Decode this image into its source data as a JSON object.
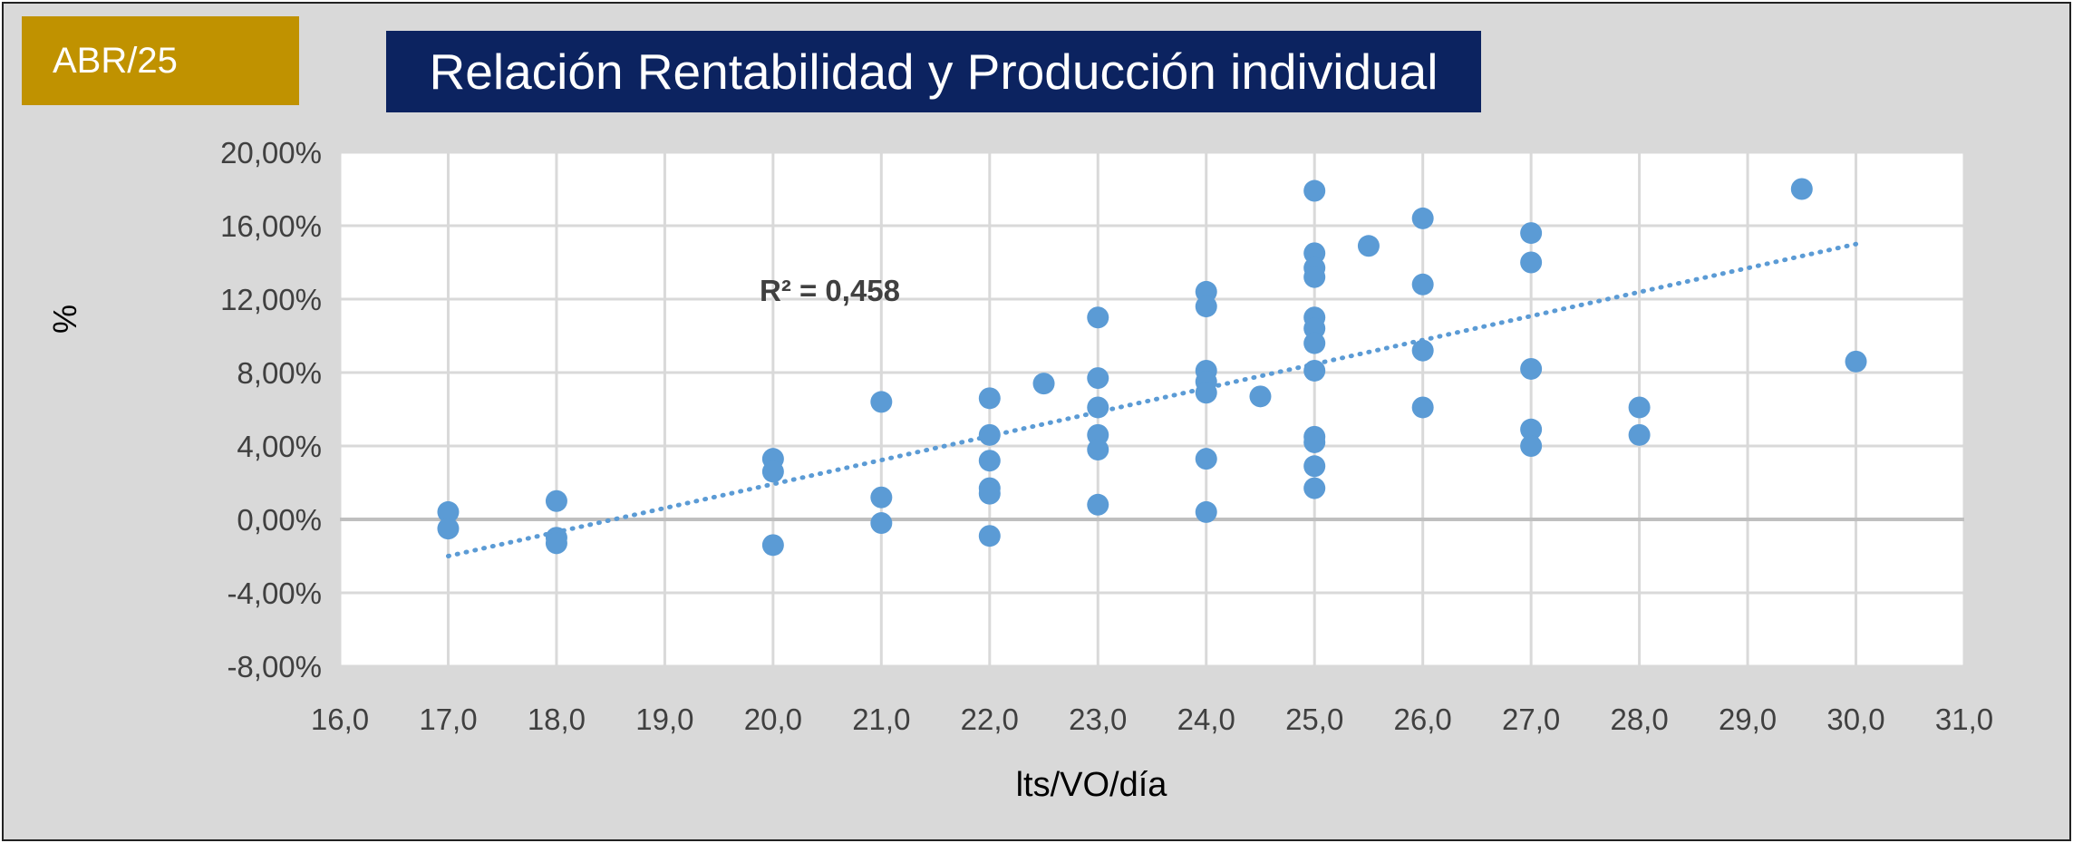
{
  "badge": {
    "label": "ABR/25"
  },
  "title": "Relación Rentabilidad y Producción individual",
  "colors": {
    "badge_bg": "#c09200",
    "title_bg": "#0c2360",
    "frame_bg": "#d9d9d9",
    "plot_bg": "#ffffff",
    "points": "#5b9bd5",
    "trendline": "#5b9bd5",
    "zero_line": "#bfbfbf"
  },
  "chart_data": {
    "type": "scatter",
    "title": "Relación Rentabilidad y Producción individual",
    "xlabel": "lts/VO/día",
    "ylabel": "%",
    "xlim": [
      16,
      31
    ],
    "ylim": [
      -8,
      20
    ],
    "x_ticks": [
      "16,0",
      "17,0",
      "18,0",
      "19,0",
      "20,0",
      "21,0",
      "22,0",
      "23,0",
      "24,0",
      "25,0",
      "26,0",
      "27,0",
      "28,0",
      "29,0",
      "30,0",
      "31,0"
    ],
    "y_ticks": [
      "20,00%",
      "16,00%",
      "12,00%",
      "8,00%",
      "4,00%",
      "0,00%",
      "-4,00%",
      "-8,00%"
    ],
    "grid": true,
    "legend": "none",
    "annotation": "R² = 0,458",
    "trendline": {
      "type": "linear",
      "style": "dotted",
      "x": [
        17,
        30
      ],
      "y": [
        -2.0,
        15.0
      ]
    },
    "points": [
      {
        "x": 17,
        "y": 0.4
      },
      {
        "x": 17,
        "y": -0.5
      },
      {
        "x": 18,
        "y": 1.0
      },
      {
        "x": 18,
        "y": -1.0
      },
      {
        "x": 18,
        "y": -1.3
      },
      {
        "x": 20,
        "y": 3.3
      },
      {
        "x": 20,
        "y": 2.6
      },
      {
        "x": 20,
        "y": -1.4
      },
      {
        "x": 21,
        "y": 6.4
      },
      {
        "x": 21,
        "y": 1.2
      },
      {
        "x": 21,
        "y": -0.2
      },
      {
        "x": 22,
        "y": 6.6
      },
      {
        "x": 22,
        "y": 4.6
      },
      {
        "x": 22,
        "y": 3.2
      },
      {
        "x": 22,
        "y": 1.7
      },
      {
        "x": 22,
        "y": 1.4
      },
      {
        "x": 22,
        "y": -0.9
      },
      {
        "x": 22.5,
        "y": 7.4
      },
      {
        "x": 23,
        "y": 11.0
      },
      {
        "x": 23,
        "y": 7.7
      },
      {
        "x": 23,
        "y": 6.1
      },
      {
        "x": 23,
        "y": 4.6
      },
      {
        "x": 23,
        "y": 3.8
      },
      {
        "x": 23,
        "y": 0.8
      },
      {
        "x": 24,
        "y": 12.4
      },
      {
        "x": 24,
        "y": 11.6
      },
      {
        "x": 24,
        "y": 8.1
      },
      {
        "x": 24,
        "y": 7.5
      },
      {
        "x": 24,
        "y": 6.9
      },
      {
        "x": 24,
        "y": 3.3
      },
      {
        "x": 24,
        "y": 0.4
      },
      {
        "x": 24.5,
        "y": 6.7
      },
      {
        "x": 25,
        "y": 17.9
      },
      {
        "x": 25,
        "y": 14.5
      },
      {
        "x": 25,
        "y": 13.7
      },
      {
        "x": 25,
        "y": 13.2
      },
      {
        "x": 25,
        "y": 11.0
      },
      {
        "x": 25,
        "y": 10.4
      },
      {
        "x": 25,
        "y": 9.6
      },
      {
        "x": 25,
        "y": 8.1
      },
      {
        "x": 25,
        "y": 4.5
      },
      {
        "x": 25,
        "y": 4.2
      },
      {
        "x": 25,
        "y": 2.9
      },
      {
        "x": 25,
        "y": 1.7
      },
      {
        "x": 25.5,
        "y": 14.9
      },
      {
        "x": 26,
        "y": 16.4
      },
      {
        "x": 26,
        "y": 12.8
      },
      {
        "x": 26,
        "y": 9.2
      },
      {
        "x": 26,
        "y": 6.1
      },
      {
        "x": 27,
        "y": 15.6
      },
      {
        "x": 27,
        "y": 14.0
      },
      {
        "x": 27,
        "y": 8.2
      },
      {
        "x": 27,
        "y": 4.9
      },
      {
        "x": 27,
        "y": 4.0
      },
      {
        "x": 28,
        "y": 6.1
      },
      {
        "x": 28,
        "y": 4.6
      },
      {
        "x": 29.5,
        "y": 18.0
      },
      {
        "x": 30,
        "y": 8.6
      }
    ]
  }
}
